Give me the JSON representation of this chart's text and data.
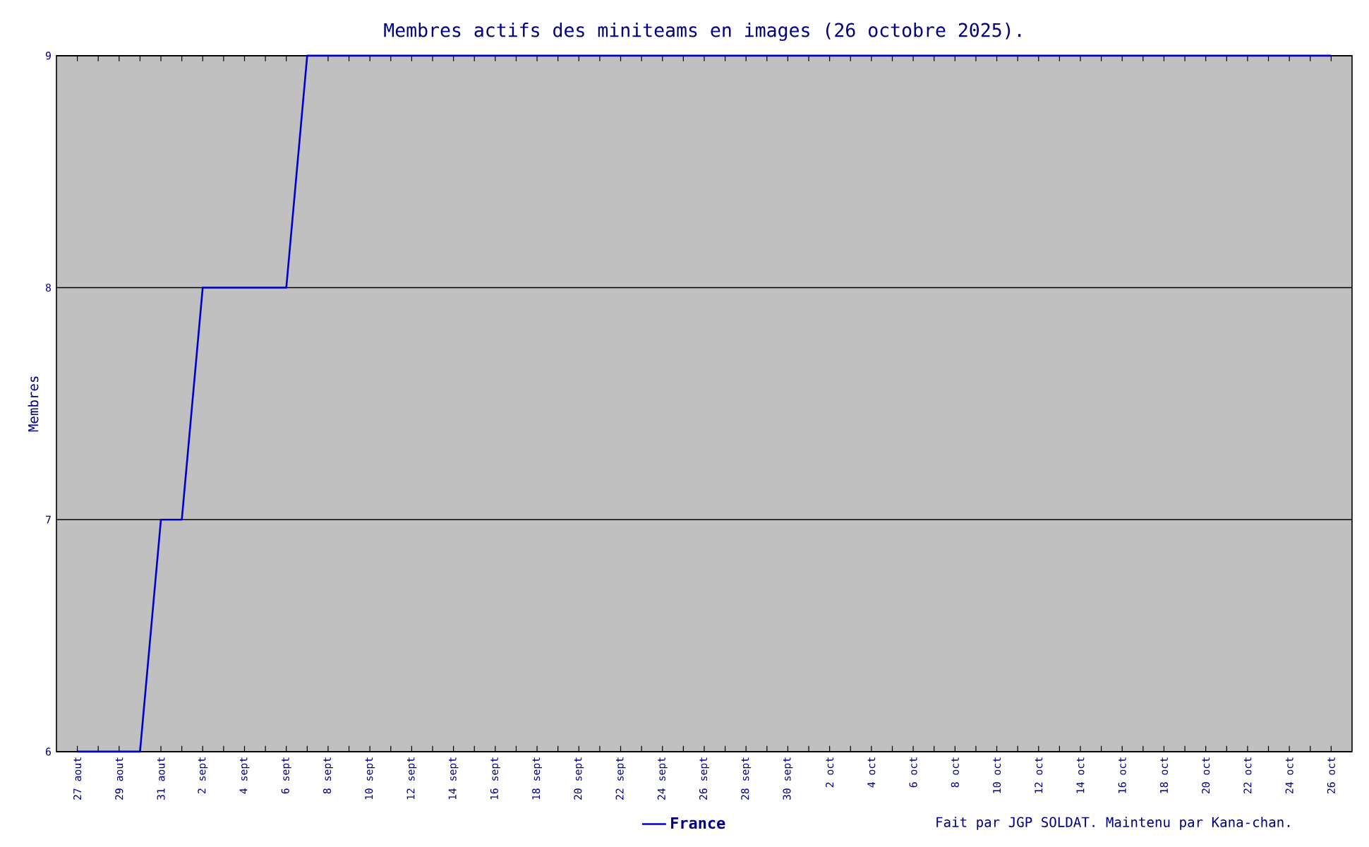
{
  "chart_data": {
    "type": "line",
    "title": "Membres actifs des miniteams en images (26 octobre 2025).",
    "ylabel": "Membres",
    "categories": [
      "27 aout",
      null,
      "29 aout",
      null,
      "31 aout",
      null,
      "2 sept",
      null,
      "4 sept",
      null,
      "6 sept",
      null,
      "8 sept",
      null,
      "10 sept",
      null,
      "12 sept",
      null,
      "14 sept",
      null,
      "16 sept",
      null,
      "18 sept",
      null,
      "20 sept",
      null,
      "22 sept",
      null,
      "24 sept",
      null,
      "26 sept",
      null,
      "28 sept",
      null,
      "30 sept",
      null,
      "2 oct",
      null,
      "4 oct",
      null,
      "6 oct",
      null,
      "8 oct",
      null,
      "10 oct",
      null,
      "12 oct",
      null,
      "14 oct",
      null,
      "16 oct",
      null,
      "18 oct",
      null,
      "20 oct",
      null,
      "22 oct",
      null,
      "24 oct",
      null,
      "26 oct"
    ],
    "series": [
      {
        "name": "France",
        "color": "#0000cc",
        "values": [
          6,
          6,
          6,
          6,
          7,
          7,
          8,
          8,
          8,
          8,
          8,
          9,
          9,
          9,
          9,
          9,
          9,
          9,
          9,
          9,
          9,
          9,
          9,
          9,
          9,
          9,
          9,
          9,
          9,
          9,
          9,
          9,
          9,
          9,
          9,
          9,
          9,
          9,
          9,
          9,
          9,
          9,
          9,
          9,
          9,
          9,
          9,
          9,
          9,
          9,
          9,
          9,
          9,
          9,
          9,
          9,
          9,
          9,
          9,
          9,
          9
        ]
      }
    ],
    "ylim": [
      6,
      9
    ],
    "yticks": [
      6,
      7,
      8,
      9
    ],
    "grid": "y",
    "legend": "bottom",
    "annotations": [
      "Fait par JGP SOLDAT. Maintenu par Kana-chan."
    ]
  }
}
